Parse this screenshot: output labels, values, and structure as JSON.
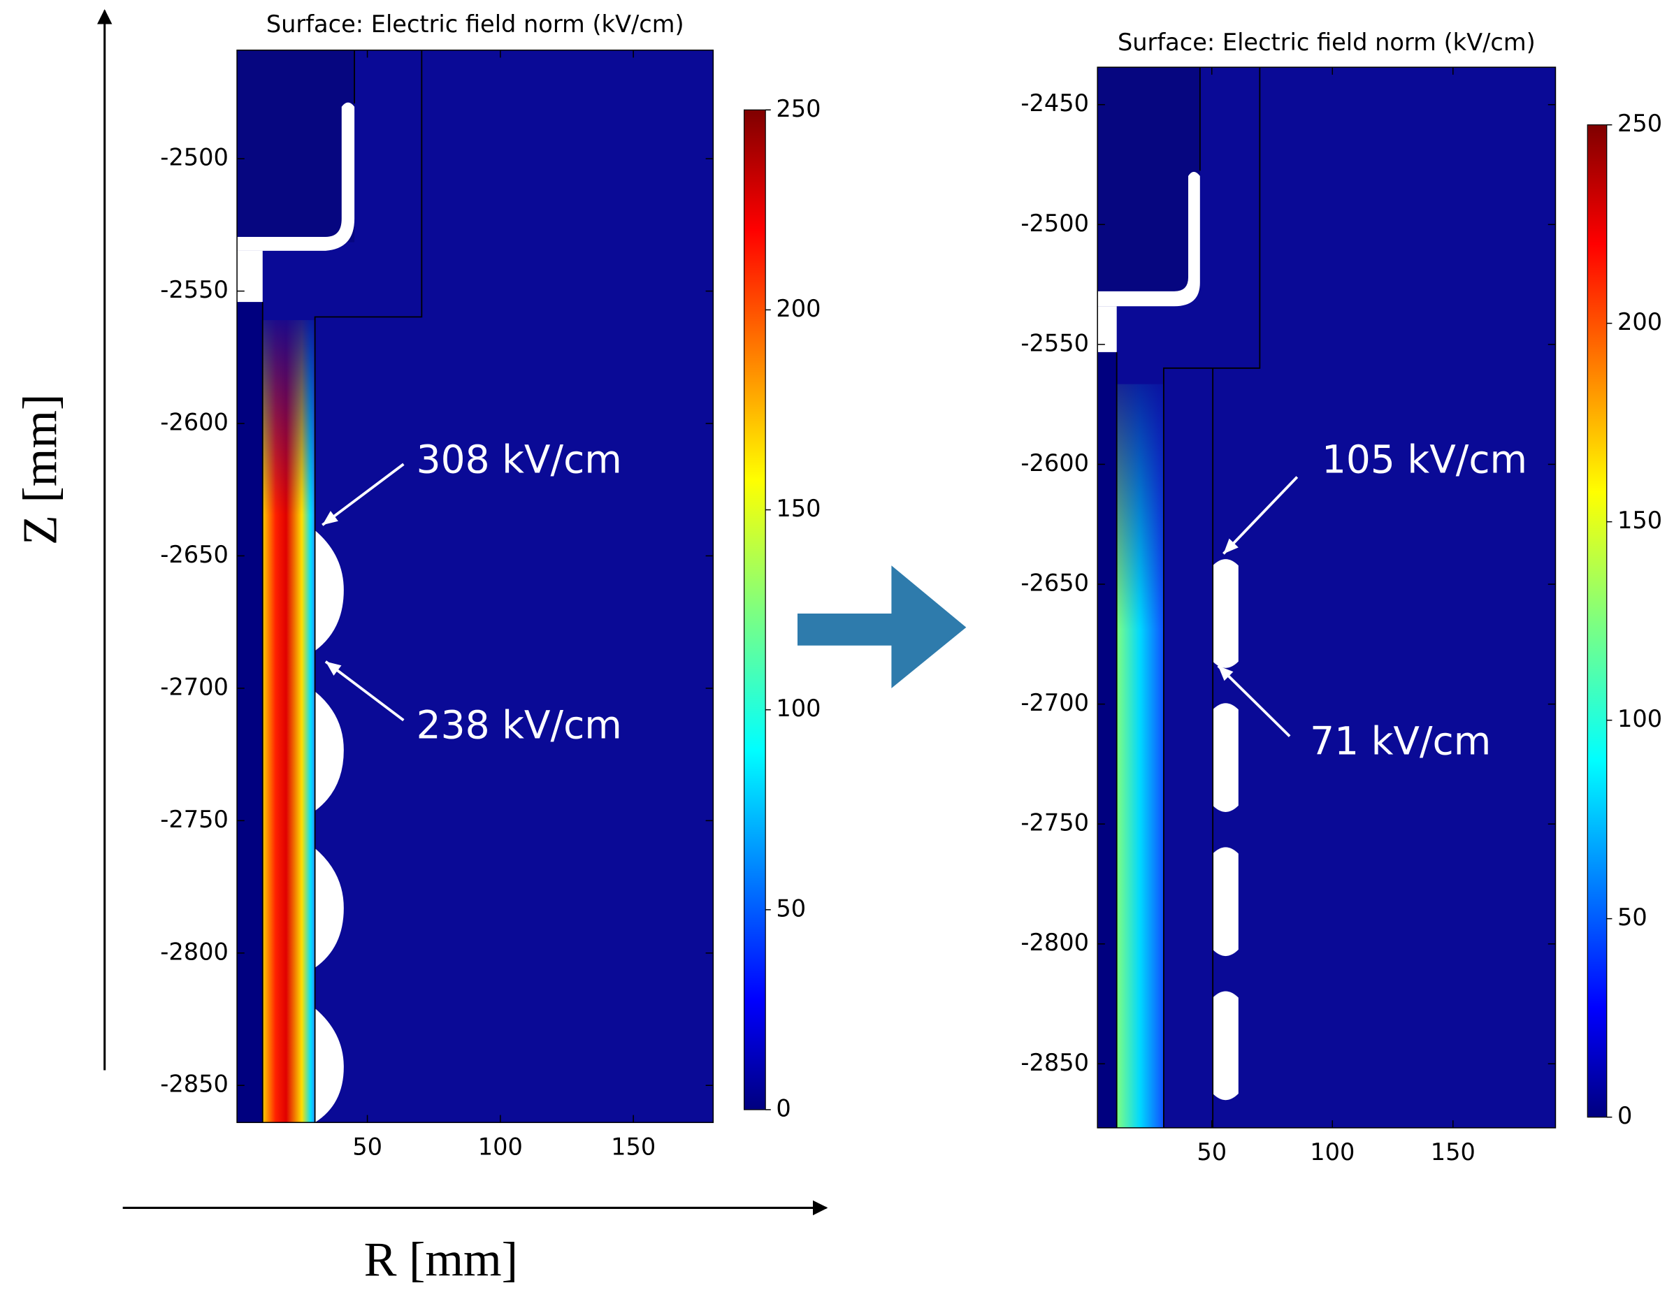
{
  "figure": {
    "y_label": "Z [mm]",
    "x_label": "R [mm]"
  },
  "chart_data": [
    {
      "type": "surface",
      "title": "Surface: Electric field norm (kV/cm)",
      "xlim": [
        1,
        180
      ],
      "ylim": [
        -2864,
        -2459
      ],
      "xticks": [
        50,
        100,
        150
      ],
      "yticks": [
        -2500,
        -2550,
        -2600,
        -2650,
        -2700,
        -2750,
        -2800,
        -2850
      ],
      "colorbar": {
        "lim": [
          0,
          250
        ],
        "ticks": [
          0,
          50,
          100,
          150,
          200,
          250
        ]
      },
      "annotations": [
        {
          "text": "308 kV/cm"
        },
        {
          "text": "238 kV/cm"
        }
      ]
    },
    {
      "type": "surface",
      "title": "Surface: Electric field norm (kV/cm)",
      "xlim": [
        2.6,
        192.5
      ],
      "ylim": [
        -2876.7,
        -2434.4
      ],
      "xticks": [
        50,
        100,
        150
      ],
      "yticks": [
        -2450,
        -2500,
        -2550,
        -2600,
        -2650,
        -2700,
        -2750,
        -2800,
        -2850
      ],
      "colorbar": {
        "lim": [
          0,
          250
        ],
        "ticks": [
          0,
          50,
          100,
          150,
          200,
          250
        ]
      },
      "annotations": [
        {
          "text": "105 kV/cm"
        },
        {
          "text": "71 kV/cm"
        }
      ]
    }
  ]
}
